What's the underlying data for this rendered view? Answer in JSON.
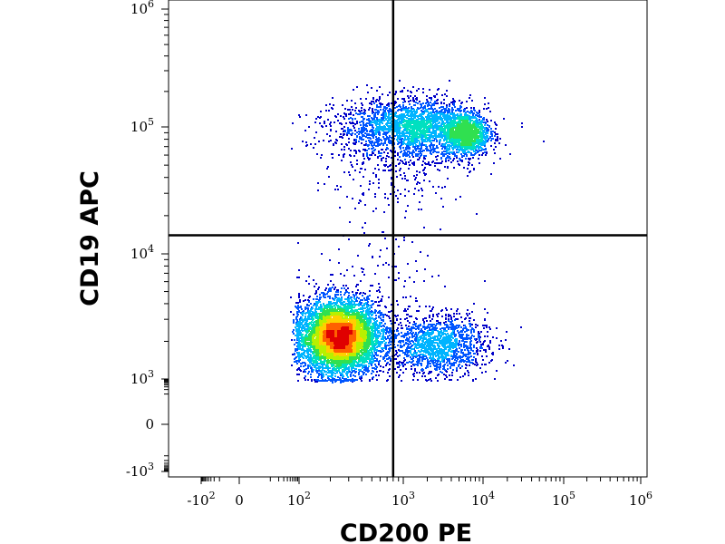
{
  "chart_data": {
    "type": "scatter",
    "subtype": "flow-cytometry-density-dot-plot",
    "title": "",
    "xlabel": "CD200 PE",
    "ylabel": "CD19 APC",
    "x_scale": "biexponential",
    "y_scale": "biexponential",
    "xlim": [
      -300,
      1200000
    ],
    "ylim": [
      -1500,
      1200000
    ],
    "x_ticks": [
      {
        "base": "-10",
        "exp": "2",
        "value": -100
      },
      {
        "base": "0",
        "exp": "",
        "value": 0
      },
      {
        "base": "10",
        "exp": "2",
        "value": 100
      },
      {
        "base": "10",
        "exp": "3",
        "value": 1000
      },
      {
        "base": "10",
        "exp": "4",
        "value": 10000
      },
      {
        "base": "10",
        "exp": "5",
        "value": 100000
      },
      {
        "base": "10",
        "exp": "6",
        "value": 1000000
      }
    ],
    "y_ticks": [
      {
        "base": "-10",
        "exp": "3",
        "value": -1000
      },
      {
        "base": "0",
        "exp": "",
        "value": 0
      },
      {
        "base": "10",
        "exp": "3",
        "value": 1000
      },
      {
        "base": "10",
        "exp": "4",
        "value": 10000
      },
      {
        "base": "10",
        "exp": "5",
        "value": 100000
      },
      {
        "base": "10",
        "exp": "6",
        "value": 1000000
      }
    ],
    "quadrant_gate": {
      "x": 800,
      "y": 14000
    },
    "populations": [
      {
        "cx": 240,
        "cy": 2200,
        "sx_decades": 0.2,
        "sy_decades": 0.15,
        "events": 7000
      },
      {
        "cx": 2500,
        "cy": 1900,
        "sx_decades": 0.32,
        "sy_decades": 0.12,
        "events": 1500
      },
      {
        "cx": 6000,
        "cy": 90000,
        "sx_decades": 0.15,
        "sy_decades": 0.09,
        "events": 1200
      },
      {
        "cx": 1300,
        "cy": 100000,
        "sx_decades": 0.38,
        "sy_decades": 0.12,
        "events": 2200
      },
      {
        "cx": 900,
        "cy": 60000,
        "sx_decades": 0.4,
        "sy_decades": 0.22,
        "events": 350
      },
      {
        "cx": 600,
        "cy": 6000,
        "sx_decades": 0.35,
        "sy_decades": 0.25,
        "events": 120
      }
    ],
    "density_colormap": [
      "#0000c8",
      "#0055ff",
      "#00b4ff",
      "#00e0c0",
      "#30e050",
      "#b8f000",
      "#ffd000",
      "#ff6000",
      "#e00000"
    ],
    "grid": false,
    "legend": "none"
  }
}
